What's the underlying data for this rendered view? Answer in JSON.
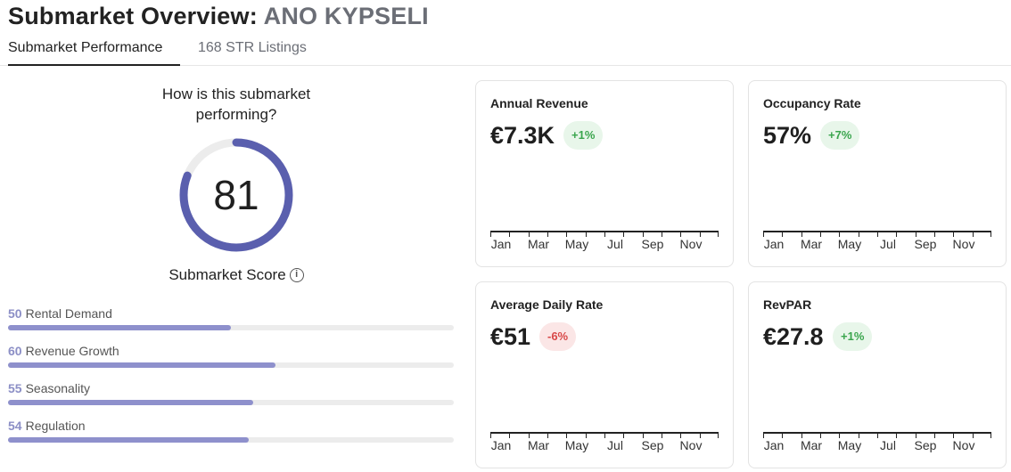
{
  "header": {
    "title_prefix": "Submarket Overview: ",
    "title_submarket": "ANO KYPSELI"
  },
  "tabs": [
    {
      "label": "Submarket Performance",
      "active": true
    },
    {
      "label": "168 STR Listings",
      "active": false
    }
  ],
  "score": {
    "question": "How is this submarket performing?",
    "value": "81",
    "label": "Submarket Score",
    "info_icon": "info-icon",
    "gauge_fraction": 0.81,
    "gauge_color": "#5a5fae"
  },
  "metrics": [
    {
      "value": "50",
      "label": "Rental Demand",
      "fraction": 0.5
    },
    {
      "value": "60",
      "label": "Revenue Growth",
      "fraction": 0.6
    },
    {
      "value": "55",
      "label": "Seasonality",
      "fraction": 0.55
    },
    {
      "value": "54",
      "label": "Regulation",
      "fraction": 0.54
    }
  ],
  "cards": [
    {
      "title": "Annual Revenue",
      "value": "€7.3K",
      "change": "+1%",
      "trend": "positive",
      "months": [
        "Jan",
        "Mar",
        "May",
        "Jul",
        "Sep",
        "Nov"
      ]
    },
    {
      "title": "Occupancy Rate",
      "value": "57%",
      "change": "+7%",
      "trend": "positive",
      "months": [
        "Jan",
        "Mar",
        "May",
        "Jul",
        "Sep",
        "Nov"
      ]
    },
    {
      "title": "Average Daily Rate",
      "value": "€51",
      "change": "-6%",
      "trend": "negative",
      "months": [
        "Jan",
        "Mar",
        "May",
        "Jul",
        "Sep",
        "Nov"
      ]
    },
    {
      "title": "RevPAR",
      "value": "€27.8",
      "change": "+1%",
      "trend": "positive",
      "months": [
        "Jan",
        "Mar",
        "May",
        "Jul",
        "Sep",
        "Nov"
      ]
    }
  ],
  "colors": {
    "positive_text": "#3aa54d",
    "negative_text": "#d84848",
    "bar_fill": "#8e90cc"
  }
}
